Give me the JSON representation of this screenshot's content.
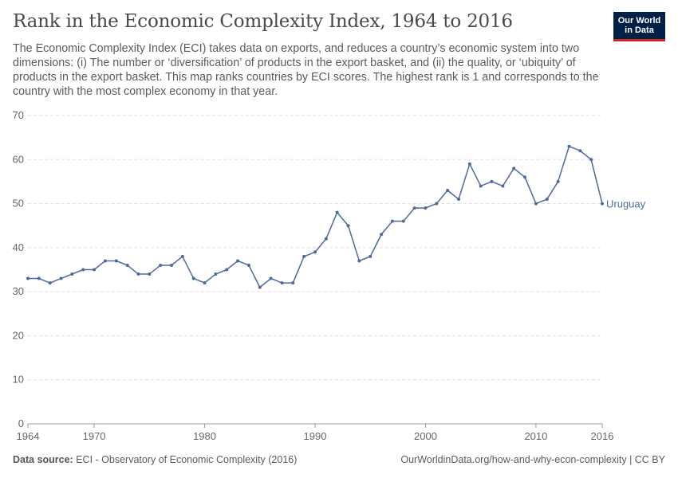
{
  "header": {
    "title": "Rank in the Economic Complexity Index, 1964 to 2016",
    "subtitle": "The Economic Complexity Index (ECI) takes data on exports, and reduces a country’s economic system into two dimensions: (i) The number or ‘diversification’ of products in the export basket, and (ii) the quality, or ‘ubiquity’ of products in the export basket. This map ranks countries by ECI scores. The highest rank is 1 and corresponds to the country with the most complex economy in that year."
  },
  "logo": {
    "line1": "Our World",
    "line2": "in Data",
    "bg_color": "#002147",
    "accent_color": "#ce261e"
  },
  "footer": {
    "source_label": "Data source:",
    "source_text": "ECI - Observatory of Economic Complexity (2016)",
    "url_license": "OurWorldinData.org/how-and-why-econ-complexity | CC BY"
  },
  "chart_data": {
    "type": "line",
    "title": "Rank in the Economic Complexity Index, 1964 to 2016",
    "xlabel": "",
    "ylabel": "",
    "xlim": [
      1964,
      2016
    ],
    "ylim": [
      0,
      70
    ],
    "y_ticks": [
      0,
      10,
      20,
      30,
      40,
      50,
      60,
      70
    ],
    "x_ticks": [
      1964,
      1970,
      1980,
      1990,
      2000,
      2010,
      2016
    ],
    "grid": "horizontal dashed",
    "series": [
      {
        "name": "Uruguay",
        "color": "#4c6a9c",
        "x": [
          1964,
          1965,
          1966,
          1967,
          1968,
          1969,
          1970,
          1971,
          1972,
          1973,
          1974,
          1975,
          1976,
          1977,
          1978,
          1979,
          1980,
          1981,
          1982,
          1983,
          1984,
          1985,
          1986,
          1987,
          1988,
          1989,
          1990,
          1991,
          1992,
          1993,
          1994,
          1995,
          1996,
          1997,
          1998,
          1999,
          2000,
          2001,
          2002,
          2003,
          2004,
          2005,
          2006,
          2007,
          2008,
          2009,
          2010,
          2011,
          2012,
          2013,
          2014,
          2015,
          2016
        ],
        "values": [
          33,
          33,
          32,
          33,
          34,
          35,
          35,
          37,
          37,
          36,
          34,
          34,
          36,
          36,
          38,
          33,
          32,
          34,
          35,
          37,
          36,
          31,
          33,
          32,
          32,
          38,
          39,
          42,
          48,
          45,
          37,
          38,
          43,
          46,
          46,
          49,
          49,
          50,
          53,
          51,
          59,
          54,
          55,
          54,
          58,
          56,
          50,
          51,
          55,
          63,
          62,
          60,
          50
        ]
      }
    ]
  }
}
